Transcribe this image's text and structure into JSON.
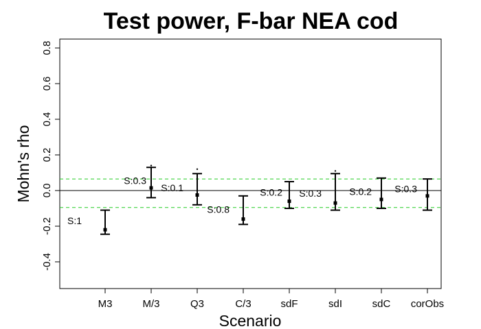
{
  "chart_data": {
    "type": "errorbar",
    "title": "Test power, F-bar NEA cod",
    "xlabel": "Scenario",
    "ylabel": "Mohn's rho",
    "ylim": [
      -0.55,
      0.85
    ],
    "yticks": [
      -0.4,
      -0.2,
      0.0,
      0.2,
      0.4,
      0.6,
      0.8
    ],
    "ytick_labels": [
      "-0.4",
      "-0.2",
      "0.0",
      "0.2",
      "0.4",
      "0.6",
      "0.8"
    ],
    "grid": false,
    "reference_lines": {
      "zero": 0.0,
      "dashed": [
        0.065,
        -0.095
      ],
      "zero_color": "#000000",
      "dashed_color": "#22cc22"
    },
    "categories": [
      "M3",
      "M/3",
      "Q3",
      "C/3",
      "sdF",
      "sdI",
      "sdC",
      "corObs"
    ],
    "points": [
      {
        "category": "M3",
        "median": -0.22,
        "lower": -0.245,
        "upper": -0.11,
        "annotation": "S:1"
      },
      {
        "category": "M/3",
        "median": 0.015,
        "lower": -0.04,
        "upper": 0.13,
        "annotation": "S:0.3"
      },
      {
        "category": "Q3",
        "median": -0.025,
        "lower": -0.08,
        "upper": 0.095,
        "annotation": "S:0.1"
      },
      {
        "category": "C/3",
        "median": -0.16,
        "lower": -0.19,
        "upper": -0.03,
        "annotation": "S:0.8"
      },
      {
        "category": "sdF",
        "median": -0.06,
        "lower": -0.1,
        "upper": 0.05,
        "annotation": "S:0.2"
      },
      {
        "category": "sdI",
        "median": -0.07,
        "lower": -0.11,
        "upper": 0.095,
        "annotation": "S:0.3"
      },
      {
        "category": "sdC",
        "median": -0.05,
        "lower": -0.1,
        "upper": 0.07,
        "annotation": "S:0.2"
      },
      {
        "category": "corObs",
        "median": -0.03,
        "lower": -0.11,
        "upper": 0.065,
        "annotation": "S:0.3"
      }
    ],
    "outliers": [
      {
        "category": "M/3",
        "value": 0.14
      },
      {
        "category": "Q3",
        "value": 0.12
      },
      {
        "category": "sdI",
        "value": 0.11
      }
    ]
  }
}
